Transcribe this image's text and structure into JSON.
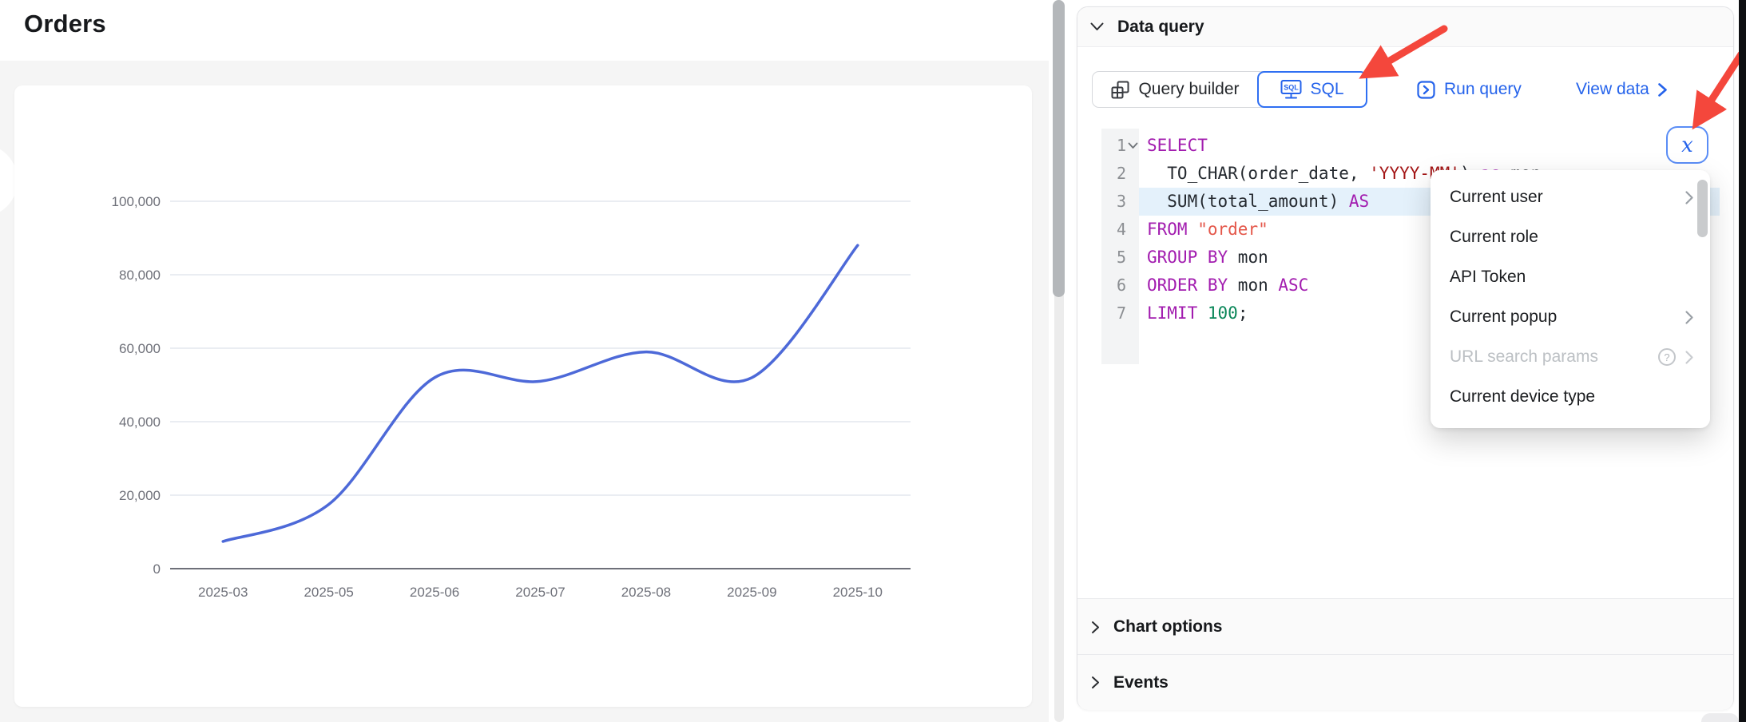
{
  "page": {
    "title": "Orders"
  },
  "chart_data": {
    "type": "line",
    "smooth": true,
    "title": "",
    "xlabel": "",
    "ylabel": "",
    "categories": [
      "2025-03",
      "2025-05",
      "2025-06",
      "2025-07",
      "2025-08",
      "2025-09",
      "2025-10"
    ],
    "values": [
      7400,
      17500,
      52000,
      51000,
      59000,
      52000,
      88000
    ],
    "y_ticks": [
      0,
      20000,
      40000,
      60000,
      80000,
      100000
    ],
    "ylim": [
      0,
      100000
    ],
    "grid": true,
    "legend": "none",
    "line_color": "#4d69d8",
    "axis_color": "#6E7079",
    "grid_color": "#e4e7ed"
  },
  "inspector": {
    "title": "Data query",
    "tabs": [
      {
        "label": "Query builder",
        "icon": "table-grid-icon",
        "active": false
      },
      {
        "label": "SQL",
        "icon": "sql-monitor-icon",
        "active": true
      }
    ],
    "run_query_label": "Run query",
    "view_data_label": "View data",
    "fx_label": "x",
    "sections": {
      "chart_options": "Chart options",
      "events": "Events"
    },
    "editor": {
      "lines": [
        {
          "num": 1,
          "fold": true,
          "tokens": [
            [
              "kw",
              "SELECT"
            ]
          ]
        },
        {
          "num": 2,
          "tokens": [
            [
              "pl",
              "  TO_CHAR(order_date, "
            ],
            [
              "str",
              "'YYYY-MM'"
            ],
            [
              "pl",
              ") "
            ],
            [
              "kw",
              "as"
            ],
            [
              "pl",
              " mon"
            ]
          ]
        },
        {
          "num": 3,
          "active": true,
          "tokens": [
            [
              "pl",
              "  SUM(total_amount) "
            ],
            [
              "kw",
              "AS"
            ]
          ]
        },
        {
          "num": 4,
          "tokens": [
            [
              "kw",
              "FROM"
            ],
            [
              "pl",
              " "
            ],
            [
              "str2",
              "\"order\""
            ]
          ]
        },
        {
          "num": 5,
          "tokens": [
            [
              "kw",
              "GROUP BY"
            ],
            [
              "pl",
              " mon"
            ]
          ]
        },
        {
          "num": 6,
          "tokens": [
            [
              "kw",
              "ORDER BY"
            ],
            [
              "pl",
              " mon "
            ],
            [
              "kw",
              "ASC"
            ]
          ]
        },
        {
          "num": 7,
          "tokens": [
            [
              "kw",
              "LIMIT"
            ],
            [
              "pl",
              " "
            ],
            [
              "num",
              "100"
            ],
            [
              "pl",
              ";"
            ]
          ]
        }
      ]
    },
    "menu": {
      "items": [
        {
          "label": "Current user",
          "submenu": true
        },
        {
          "label": "Current role"
        },
        {
          "label": "API Token"
        },
        {
          "label": "Current popup",
          "submenu": true
        },
        {
          "label": "URL search params",
          "submenu": true,
          "disabled": true,
          "help": true
        },
        {
          "label": "Current device type"
        }
      ]
    }
  },
  "annotations": {
    "arrow_color": "#f4473c",
    "arrows": [
      "points-to-sql-tab",
      "points-to-fx-button"
    ]
  },
  "colors": {
    "accent_blue": "#2563eb",
    "code_keyword": "#a21caf",
    "code_string": "#a31515",
    "code_string_alt": "#e45649",
    "code_number": "#098658",
    "panel_bg": "#fafafa",
    "canvas_bg": "#f5f5f5"
  }
}
